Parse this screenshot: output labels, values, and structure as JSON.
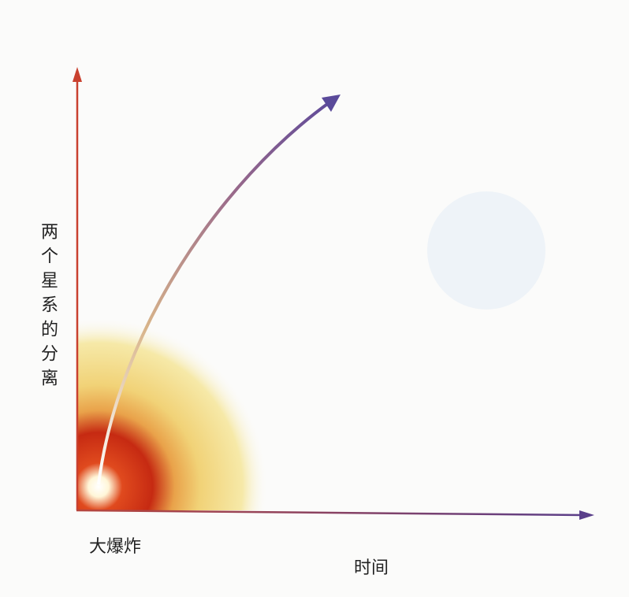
{
  "y_axis_label": "两个星系的分离",
  "x_axis_label": "时间",
  "origin_label": "大爆炸"
}
